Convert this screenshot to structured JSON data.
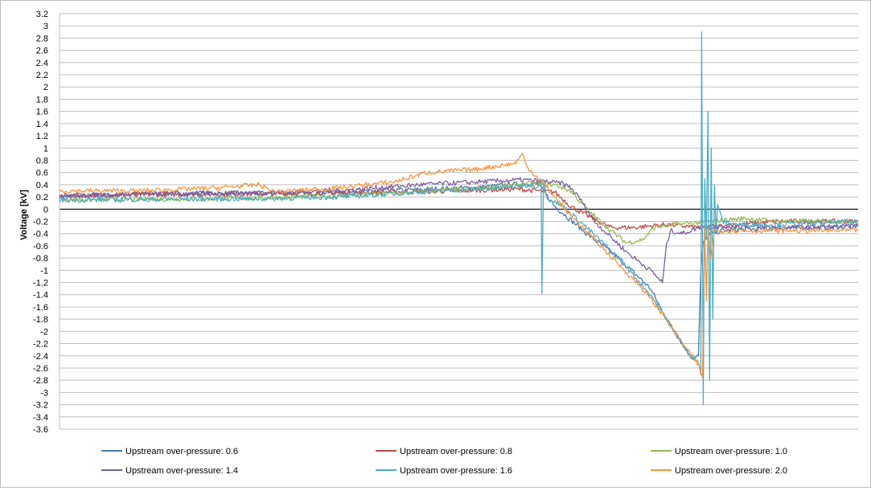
{
  "chart_data": {
    "type": "line",
    "title": "",
    "xlabel": "",
    "ylabel": "Voltage [kV]",
    "ylim": [
      -3.6,
      3.2
    ],
    "ytick_step": 0.2,
    "yticks": [
      "3.2",
      "3",
      "2.8",
      "2.6",
      "2.4",
      "2.2",
      "2",
      "1.8",
      "1.6",
      "1.4",
      "1.2",
      "1",
      "0.8",
      "0.6",
      "0.4",
      "0.2",
      "0",
      "-0.2",
      "-0.4",
      "-0.6",
      "-0.8",
      "-1",
      "-1.2",
      "-1.4",
      "-1.6",
      "-1.8",
      "-2",
      "-2.2",
      "-2.4",
      "-2.6",
      "-2.8",
      "-3",
      "-3.2",
      "-3.4",
      "-3.6"
    ],
    "xlim": [
      0,
      1000
    ],
    "grid": true,
    "x_axis_labels_shown": false,
    "legend_position": "bottom",
    "series": [
      {
        "name": "Upstream over-pressure: 0.6",
        "color": "#4a7ab5",
        "points": [
          [
            0,
            0.2
          ],
          [
            100,
            0.25
          ],
          [
            250,
            0.26
          ],
          [
            350,
            0.27
          ],
          [
            450,
            0.32
          ],
          [
            530,
            0.36
          ],
          [
            560,
            0.4
          ],
          [
            590,
            0.42
          ],
          [
            600,
            0.4
          ],
          [
            620,
            0.05
          ],
          [
            660,
            -0.4
          ],
          [
            700,
            -0.8
          ],
          [
            740,
            -1.3
          ],
          [
            760,
            -1.8
          ],
          [
            780,
            -2.2
          ],
          [
            793,
            -2.45
          ],
          [
            800,
            -2.4
          ],
          [
            803,
            -1.0
          ],
          [
            806,
            -0.55
          ],
          [
            815,
            -0.4
          ],
          [
            830,
            -0.35
          ],
          [
            880,
            -0.32
          ],
          [
            950,
            -0.3
          ],
          [
            1000,
            -0.28
          ]
        ]
      },
      {
        "name": "Upstream over-pressure: 0.8",
        "color": "#be4b48",
        "points": [
          [
            0,
            0.22
          ],
          [
            100,
            0.24
          ],
          [
            250,
            0.25
          ],
          [
            400,
            0.28
          ],
          [
            500,
            0.3
          ],
          [
            570,
            0.33
          ],
          [
            600,
            0.3
          ],
          [
            620,
            0.28
          ],
          [
            640,
            0.05
          ],
          [
            660,
            -0.1
          ],
          [
            690,
            -0.3
          ],
          [
            720,
            -0.3
          ],
          [
            760,
            -0.25
          ],
          [
            800,
            -0.3
          ],
          [
            850,
            -0.25
          ],
          [
            900,
            -0.2
          ],
          [
            1000,
            -0.2
          ]
        ]
      },
      {
        "name": "Upstream over-pressure: 1.0",
        "color": "#98b954",
        "points": [
          [
            0,
            0.15
          ],
          [
            100,
            0.16
          ],
          [
            250,
            0.18
          ],
          [
            350,
            0.22
          ],
          [
            450,
            0.28
          ],
          [
            530,
            0.35
          ],
          [
            590,
            0.42
          ],
          [
            620,
            0.4
          ],
          [
            640,
            0.3
          ],
          [
            660,
            0.0
          ],
          [
            690,
            -0.35
          ],
          [
            710,
            -0.55
          ],
          [
            730,
            -0.5
          ],
          [
            745,
            -0.3
          ],
          [
            770,
            -0.25
          ],
          [
            800,
            -0.22
          ],
          [
            830,
            -0.18
          ],
          [
            860,
            -0.15
          ],
          [
            900,
            -0.2
          ],
          [
            950,
            -0.2
          ],
          [
            1000,
            -0.2
          ]
        ]
      },
      {
        "name": "Upstream over-pressure: 1.4",
        "color": "#7d5fa0",
        "points": [
          [
            0,
            0.22
          ],
          [
            100,
            0.25
          ],
          [
            250,
            0.27
          ],
          [
            350,
            0.3
          ],
          [
            450,
            0.4
          ],
          [
            530,
            0.45
          ],
          [
            580,
            0.48
          ],
          [
            610,
            0.45
          ],
          [
            630,
            0.42
          ],
          [
            640,
            0.35
          ],
          [
            650,
            0.2
          ],
          [
            670,
            -0.2
          ],
          [
            690,
            -0.45
          ],
          [
            710,
            -0.7
          ],
          [
            740,
            -1.0
          ],
          [
            755,
            -1.2
          ],
          [
            760,
            -0.6
          ],
          [
            765,
            -0.35
          ],
          [
            780,
            -0.4
          ],
          [
            800,
            -0.3
          ],
          [
            850,
            -0.28
          ],
          [
            900,
            -0.3
          ],
          [
            1000,
            -0.28
          ]
        ]
      },
      {
        "name": "Upstream over-pressure: 1.6",
        "color": "#4bacc6",
        "points": [
          [
            0,
            0.15
          ],
          [
            100,
            0.16
          ],
          [
            250,
            0.17
          ],
          [
            350,
            0.2
          ],
          [
            450,
            0.28
          ],
          [
            530,
            0.33
          ],
          [
            570,
            0.37
          ],
          [
            593,
            0.4
          ],
          [
            598,
            0.35
          ],
          [
            600,
            0.4
          ],
          [
            603,
            0.5
          ],
          [
            604,
            -1.38
          ],
          [
            606,
            0.45
          ],
          [
            610,
            0.2
          ],
          [
            630,
            0.05
          ],
          [
            660,
            -0.3
          ],
          [
            700,
            -0.8
          ],
          [
            740,
            -1.4
          ],
          [
            770,
            -2.0
          ],
          [
            790,
            -2.4
          ],
          [
            800,
            -2.5
          ],
          [
            803,
            -2.7
          ],
          [
            804,
            2.9
          ],
          [
            806,
            -3.2
          ],
          [
            808,
            0.5
          ],
          [
            810,
            -0.5
          ],
          [
            812,
            1.6
          ],
          [
            814,
            -2.8
          ],
          [
            816,
            1.0
          ],
          [
            818,
            -1.8
          ],
          [
            820,
            0.4
          ],
          [
            822,
            -0.4
          ],
          [
            824,
            0.1
          ],
          [
            830,
            -0.2
          ],
          [
            850,
            -0.25
          ],
          [
            900,
            -0.25
          ],
          [
            1000,
            -0.2
          ]
        ]
      },
      {
        "name": "Upstream over-pressure: 2.0",
        "color": "#f69541",
        "points": [
          [
            0,
            0.3
          ],
          [
            100,
            0.3
          ],
          [
            200,
            0.35
          ],
          [
            250,
            0.4
          ],
          [
            270,
            0.28
          ],
          [
            350,
            0.35
          ],
          [
            420,
            0.45
          ],
          [
            460,
            0.6
          ],
          [
            520,
            0.65
          ],
          [
            570,
            0.75
          ],
          [
            580,
            0.9
          ],
          [
            585,
            0.7
          ],
          [
            600,
            0.5
          ],
          [
            620,
            0.2
          ],
          [
            640,
            -0.1
          ],
          [
            670,
            -0.5
          ],
          [
            700,
            -0.9
          ],
          [
            730,
            -1.3
          ],
          [
            760,
            -1.8
          ],
          [
            780,
            -2.2
          ],
          [
            800,
            -2.55
          ],
          [
            805,
            -2.75
          ],
          [
            808,
            -0.3
          ],
          [
            810,
            -1.5
          ],
          [
            812,
            -0.3
          ],
          [
            815,
            -0.8
          ],
          [
            820,
            -0.35
          ],
          [
            860,
            -0.35
          ],
          [
            900,
            -0.35
          ],
          [
            1000,
            -0.35
          ]
        ]
      }
    ]
  }
}
